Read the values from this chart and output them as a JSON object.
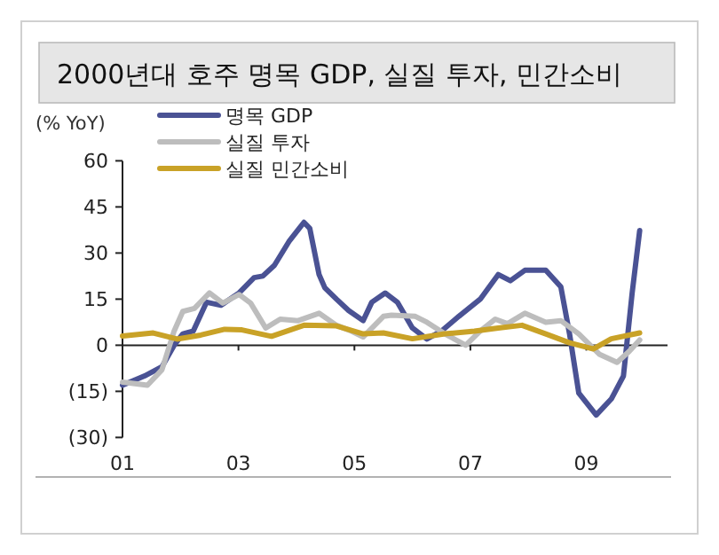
{
  "chart_data": {
    "type": "line",
    "title": "2000년대 호주 명목 GDP, 실질 투자, 민간소비",
    "ylabel": "(% YoY)",
    "xlim": [
      2001,
      2010.4
    ],
    "xticks": [
      {
        "value": 2001,
        "label": "01"
      },
      {
        "value": 2003,
        "label": "03"
      },
      {
        "value": 2005,
        "label": "05"
      },
      {
        "value": 2007,
        "label": "07"
      },
      {
        "value": 2009,
        "label": "09"
      }
    ],
    "ylim": [
      -30,
      60
    ],
    "yticks": [
      {
        "value": 60,
        "label": "60"
      },
      {
        "value": 45,
        "label": "45"
      },
      {
        "value": 30,
        "label": "30"
      },
      {
        "value": 15,
        "label": "15"
      },
      {
        "value": 0,
        "label": "0"
      },
      {
        "value": -15,
        "label": "(15)"
      },
      {
        "value": -30,
        "label": "(30)"
      }
    ],
    "legend": "top",
    "line_style": "solid",
    "marker": "none",
    "series": [
      {
        "name": "명목 GDP",
        "color": "#4a5294",
        "x": [
          2001,
          2001.38,
          2001.68,
          2001.89,
          2002.04,
          2002.22,
          2002.45,
          2002.7,
          2003.01,
          2003.27,
          2003.42,
          2003.62,
          2003.88,
          2004.13,
          2004.23,
          2004.39,
          2004.49,
          2004.69,
          2004.9,
          2005.15,
          2005.3,
          2005.53,
          2005.74,
          2006.0,
          2006.25,
          2006.5,
          2006.8,
          2007.17,
          2007.48,
          2007.69,
          2007.94,
          2008.3,
          2008.56,
          2008.71,
          2008.87,
          2009.17,
          2009.43,
          2009.64,
          2009.79,
          2009.92
        ],
        "values": [
          -13,
          -10,
          -7,
          0,
          3.7,
          4.6,
          14,
          13,
          17,
          22,
          22.5,
          26,
          34,
          40,
          38,
          23,
          18.7,
          15,
          11.3,
          8,
          14,
          17,
          14,
          5.6,
          2,
          4.6,
          9.4,
          15,
          23,
          21,
          24.4,
          24.4,
          19,
          3.7,
          -15.6,
          -22.7,
          -17.5,
          -10,
          17,
          37.3
        ]
      },
      {
        "name": "실질 투자",
        "color": "#bdbdbd",
        "x": [
          2001,
          2001.43,
          2001.68,
          2001.89,
          2002.04,
          2002.24,
          2002.5,
          2002.73,
          2003.01,
          2003.21,
          2003.47,
          2003.72,
          2004.03,
          2004.39,
          2004.69,
          2004.95,
          2005.15,
          2005.5,
          2005.64,
          2006.05,
          2006.25,
          2006.56,
          2006.92,
          2007.17,
          2007.43,
          2007.64,
          2007.94,
          2008.3,
          2008.56,
          2008.87,
          2009.23,
          2009.53,
          2009.74,
          2009.92
        ],
        "values": [
          -12,
          -13,
          -8,
          4.6,
          11,
          12,
          17,
          13.7,
          16.5,
          13.7,
          5.6,
          8.5,
          8,
          10.4,
          6.5,
          4.6,
          2.7,
          9.4,
          9.8,
          9.4,
          7.5,
          3.7,
          0,
          4.6,
          8.5,
          7,
          10.4,
          7.5,
          8,
          3.7,
          -3,
          -5.6,
          -2,
          1.7
        ]
      },
      {
        "name": "실질 민간소비",
        "color": "#c9a227",
        "x": [
          2001,
          2001.53,
          2001.94,
          2002.35,
          2002.76,
          2003.06,
          2003.57,
          2004.13,
          2004.69,
          2005.15,
          2005.5,
          2006.0,
          2006.56,
          2007.07,
          2007.48,
          2007.89,
          2008.3,
          2008.71,
          2009.12,
          2009.43,
          2009.92
        ],
        "values": [
          3,
          4,
          2,
          3.3,
          5.2,
          5,
          2.9,
          6.5,
          6.3,
          3.7,
          4,
          2.1,
          3.7,
          4.6,
          5.6,
          6.5,
          3.7,
          0.8,
          -1.2,
          2.1,
          4
        ]
      }
    ]
  }
}
